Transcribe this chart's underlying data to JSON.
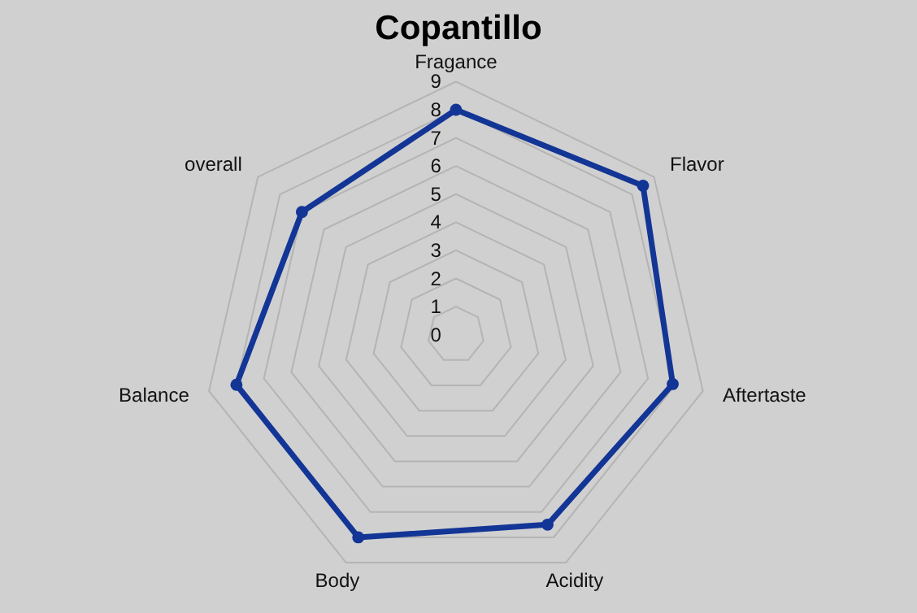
{
  "chart_data": {
    "type": "radar",
    "title": "Copantillo",
    "categories": [
      "Fragance",
      "Flavor",
      "Aftertaste",
      "Acidity",
      "Body",
      "Balance",
      "overall"
    ],
    "series": [
      {
        "color": "#123596",
        "values": [
          8,
          8.5,
          7.9,
          7.5,
          8,
          8,
          7
        ]
      }
    ],
    "ylim": [
      0,
      9
    ],
    "yticks": [
      0,
      1,
      2,
      3,
      4,
      5,
      6,
      7,
      8,
      9
    ],
    "grid": true,
    "marker": "circle"
  }
}
